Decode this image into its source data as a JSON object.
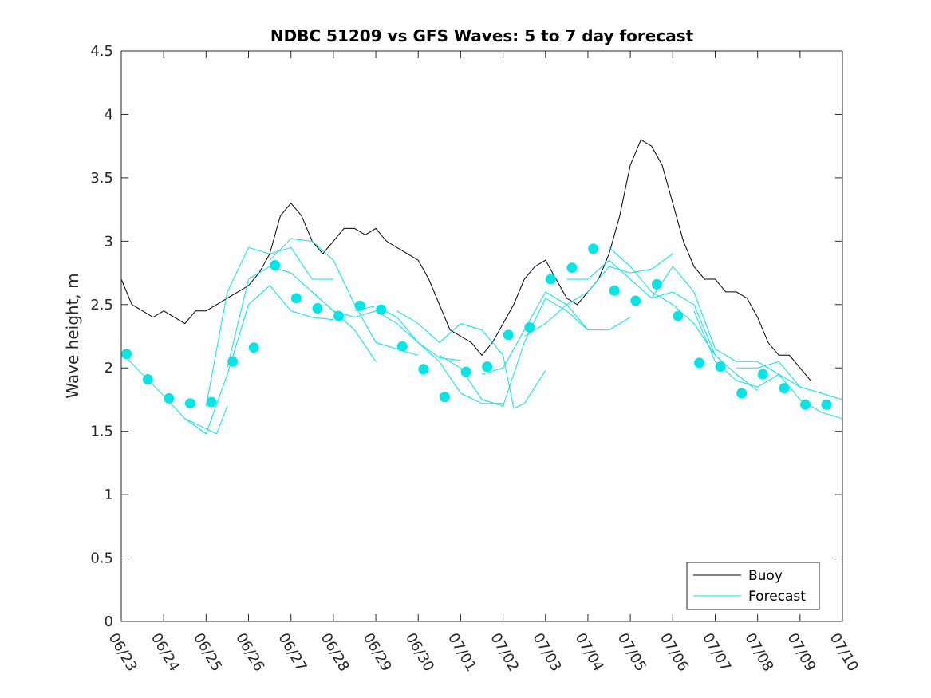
{
  "chart_data": {
    "type": "line",
    "title": "NDBC 51209 vs GFS Waves: 5 to 7 day forecast",
    "xlabel": "",
    "ylabel": "Wave height, m",
    "ylim": [
      0,
      4.5
    ],
    "yticks": [
      "0",
      "0.5",
      "1",
      "1.5",
      "2",
      "2.5",
      "3",
      "3.5",
      "4",
      "4.5"
    ],
    "xlim": [
      "06/23",
      "07/10"
    ],
    "xticks": [
      "06/23",
      "06/24",
      "06/25",
      "06/26",
      "06/27",
      "06/28",
      "06/29",
      "06/30",
      "07/01",
      "07/02",
      "07/03",
      "07/04",
      "07/05",
      "07/06",
      "07/07",
      "07/08",
      "07/09",
      "07/10"
    ],
    "grid": false,
    "legend_position": "bottom-right",
    "colors": {
      "buoy": "#000000",
      "forecast": "#00e6e6",
      "axis": "#262626"
    },
    "series": [
      {
        "name": "Buoy",
        "style": "line",
        "x": [
          "06/23 00:00",
          "06/23 06:00",
          "06/23 12:00",
          "06/23 18:00",
          "06/24 00:00",
          "06/24 06:00",
          "06/24 12:00",
          "06/24 18:00",
          "06/25 00:00",
          "06/25 06:00",
          "06/25 12:00",
          "06/25 18:00",
          "06/26 00:00",
          "06/26 06:00",
          "06/26 12:00",
          "06/26 18:00",
          "06/27 00:00",
          "06/27 06:00",
          "06/27 12:00",
          "06/27 18:00",
          "06/28 00:00",
          "06/28 06:00",
          "06/28 12:00",
          "06/28 18:00",
          "06/29 00:00",
          "06/29 06:00",
          "06/29 12:00",
          "06/29 18:00",
          "06/30 00:00",
          "06/30 06:00",
          "06/30 12:00",
          "06/30 18:00",
          "07/01 00:00",
          "07/01 06:00",
          "07/01 12:00",
          "07/01 18:00",
          "07/02 00:00",
          "07/02 06:00",
          "07/02 12:00",
          "07/02 18:00",
          "07/03 00:00",
          "07/03 06:00",
          "07/03 12:00",
          "07/03 18:00",
          "07/04 00:00",
          "07/04 06:00",
          "07/04 12:00",
          "07/04 18:00",
          "07/05 00:00",
          "07/05 06:00",
          "07/05 12:00",
          "07/05 18:00",
          "07/06 00:00",
          "07/06 06:00",
          "07/06 12:00",
          "07/06 18:00",
          "07/07 00:00",
          "07/07 06:00",
          "07/07 12:00",
          "07/07 18:00",
          "07/08 00:00",
          "07/08 06:00",
          "07/08 12:00",
          "07/08 18:00",
          "07/09 00:00",
          "07/09 06:00"
        ],
        "values": [
          2.7,
          2.5,
          2.45,
          2.4,
          2.45,
          2.4,
          2.35,
          2.45,
          2.45,
          2.5,
          2.55,
          2.6,
          2.65,
          2.75,
          2.9,
          3.2,
          3.3,
          3.2,
          3.0,
          2.9,
          3.0,
          3.1,
          3.1,
          3.05,
          3.1,
          3.0,
          2.95,
          2.9,
          2.85,
          2.7,
          2.5,
          2.3,
          2.25,
          2.2,
          2.1,
          2.2,
          2.35,
          2.5,
          2.7,
          2.8,
          2.85,
          2.7,
          2.55,
          2.5,
          2.6,
          2.7,
          2.9,
          3.2,
          3.6,
          3.8,
          3.75,
          3.6,
          3.3,
          3.0,
          2.8,
          2.7,
          2.7,
          2.6,
          2.6,
          2.55,
          2.4,
          2.2,
          2.1,
          2.1,
          2.0,
          1.9
        ]
      },
      {
        "name": "Forecast",
        "style": "markers",
        "x": [
          "06/23 03:00",
          "06/23 15:00",
          "06/24 03:00",
          "06/24 15:00",
          "06/25 03:00",
          "06/25 15:00",
          "06/26 03:00",
          "06/26 15:00",
          "06/27 03:00",
          "06/27 15:00",
          "06/28 03:00",
          "06/28 15:00",
          "06/29 03:00",
          "06/29 15:00",
          "06/30 03:00",
          "06/30 15:00",
          "07/01 03:00",
          "07/01 15:00",
          "07/02 03:00",
          "07/02 15:00",
          "07/03 03:00",
          "07/03 15:00",
          "07/04 03:00",
          "07/04 15:00",
          "07/05 03:00",
          "07/05 15:00",
          "07/06 03:00",
          "07/06 15:00",
          "07/07 03:00",
          "07/07 15:00",
          "07/08 03:00",
          "07/08 15:00",
          "07/09 03:00",
          "07/09 15:00"
        ],
        "values": [
          2.11,
          1.91,
          1.76,
          1.72,
          1.73,
          2.05,
          2.16,
          2.81,
          2.55,
          2.47,
          2.41,
          2.49,
          2.46,
          2.17,
          1.99,
          1.77,
          1.97,
          2.01,
          2.26,
          2.32,
          2.7,
          2.79,
          2.94,
          2.61,
          2.53,
          2.66,
          2.41,
          2.04,
          2.01,
          1.8,
          1.95,
          1.84,
          1.71,
          1.71
        ]
      },
      {
        "style": "line",
        "x": [
          "06/23 00:00",
          "06/23 12:00",
          "06/24 00:00",
          "06/24 12:00",
          "06/25 00:00",
          "06/25 06:00",
          "06/25 12:00"
        ],
        "values": [
          2.12,
          1.95,
          1.78,
          1.6,
          1.52,
          1.48,
          1.7
        ]
      },
      {
        "style": "line",
        "x": [
          "06/24 12:00",
          "06/25 00:00",
          "06/25 12:00",
          "06/26 00:00",
          "06/26 12:00",
          "06/27 00:00",
          "06/27 12:00",
          "06/28 00:00"
        ],
        "values": [
          1.6,
          1.48,
          1.95,
          2.5,
          2.65,
          2.45,
          2.4,
          2.38
        ]
      },
      {
        "style": "line",
        "x": [
          "06/25 00:00",
          "06/25 12:00",
          "06/26 00:00",
          "06/26 12:00",
          "06/27 00:00",
          "06/27 12:00",
          "06/28 00:00"
        ],
        "values": [
          1.7,
          2.6,
          2.95,
          2.9,
          2.95,
          2.7,
          2.7
        ]
      },
      {
        "style": "line",
        "x": [
          "06/25 12:00",
          "06/26 00:00",
          "06/26 12:00",
          "06/27 00:00",
          "06/27 12:00",
          "06/28 00:00",
          "06/28 12:00",
          "06/29 00:00"
        ],
        "values": [
          2.0,
          2.7,
          2.8,
          2.75,
          2.6,
          2.45,
          2.3,
          2.05
        ]
      },
      {
        "style": "line",
        "x": [
          "06/26 12:00",
          "06/27 00:00",
          "06/27 12:00",
          "06/28 00:00",
          "06/28 12:00",
          "06/29 00:00",
          "06/29 12:00",
          "06/30 00:00"
        ],
        "values": [
          2.85,
          3.02,
          3.0,
          2.85,
          2.5,
          2.2,
          2.15,
          2.1
        ]
      },
      {
        "style": "line",
        "x": [
          "06/27 12:00",
          "06/28 00:00",
          "06/28 12:00",
          "06/29 00:00",
          "06/29 12:00",
          "06/30 00:00",
          "06/30 12:00",
          "07/01 00:00"
        ],
        "values": [
          2.6,
          2.45,
          2.4,
          2.45,
          2.35,
          2.2,
          2.08,
          2.06
        ]
      },
      {
        "style": "line",
        "x": [
          "06/28 12:00",
          "06/29 00:00",
          "06/29 12:00",
          "06/30 00:00",
          "06/30 12:00",
          "07/01 00:00",
          "07/01 12:00",
          "07/02 00:00"
        ],
        "values": [
          2.45,
          2.49,
          2.4,
          2.2,
          2.05,
          1.8,
          1.72,
          1.72
        ]
      },
      {
        "style": "line",
        "x": [
          "06/29 12:00",
          "06/30 00:00",
          "06/30 12:00",
          "07/01 00:00",
          "07/01 12:00",
          "07/02 00:00",
          "07/02 06:00",
          "07/02 12:00",
          "07/03 00:00"
        ],
        "values": [
          2.45,
          2.35,
          2.2,
          2.35,
          2.3,
          2.1,
          1.68,
          1.72,
          1.98
        ]
      },
      {
        "style": "line",
        "x": [
          "06/30 12:00",
          "07/01 00:00",
          "07/01 12:00",
          "07/02 00:00",
          "07/02 12:00",
          "07/03 00:00",
          "07/03 12:00",
          "07/04 00:00"
        ],
        "values": [
          2.1,
          2.0,
          1.75,
          1.7,
          2.2,
          2.55,
          2.45,
          2.3
        ]
      },
      {
        "style": "line",
        "x": [
          "07/01 12:00",
          "07/02 00:00",
          "07/02 12:00",
          "07/03 00:00",
          "07/03 12:00",
          "07/04 00:00",
          "07/04 12:00",
          "07/05 00:00"
        ],
        "values": [
          1.95,
          2.0,
          2.3,
          2.6,
          2.5,
          2.3,
          2.3,
          2.4
        ]
      },
      {
        "style": "line",
        "x": [
          "07/02 12:00",
          "07/03 00:00",
          "07/03 12:00",
          "07/04 00:00",
          "07/04 12:00",
          "07/05 00:00",
          "07/05 12:00",
          "07/06 00:00"
        ],
        "values": [
          2.25,
          2.35,
          2.5,
          2.6,
          2.8,
          2.75,
          2.78,
          2.9
        ]
      },
      {
        "style": "line",
        "x": [
          "07/03 12:00",
          "07/04 00:00",
          "07/04 12:00",
          "07/05 00:00",
          "07/05 12:00",
          "07/06 00:00",
          "07/06 12:00",
          "07/07 00:00"
        ],
        "values": [
          2.7,
          2.7,
          2.85,
          2.7,
          2.55,
          2.6,
          2.5,
          2.1
        ]
      },
      {
        "style": "line",
        "x": [
          "07/04 12:00",
          "07/05 00:00",
          "07/05 12:00",
          "07/06 00:00",
          "07/06 12:00",
          "07/07 00:00",
          "07/07 12:00",
          "07/08 00:00"
        ],
        "values": [
          2.95,
          2.8,
          2.6,
          2.5,
          2.35,
          2.1,
          1.95,
          1.82
        ]
      },
      {
        "style": "line",
        "x": [
          "07/05 12:00",
          "07/06 00:00",
          "07/06 12:00",
          "07/07 00:00",
          "07/07 12:00",
          "07/08 00:00",
          "07/08 12:00",
          "07/09 00:00"
        ],
        "values": [
          2.55,
          2.8,
          2.6,
          2.15,
          2.05,
          2.05,
          1.95,
          1.85
        ]
      },
      {
        "style": "line",
        "x": [
          "07/06 12:00",
          "07/07 00:00",
          "07/07 12:00",
          "07/08 00:00",
          "07/08 12:00",
          "07/09 00:00",
          "07/09 12:00",
          "07/10 00:00"
        ],
        "values": [
          2.45,
          2.05,
          1.9,
          1.85,
          1.95,
          1.75,
          1.65,
          1.6
        ]
      },
      {
        "style": "line",
        "x": [
          "07/07 12:00",
          "07/08 00:00",
          "07/08 12:00",
          "07/09 00:00",
          "07/09 12:00",
          "07/10 00:00"
        ],
        "values": [
          2.0,
          2.0,
          2.05,
          1.85,
          1.8,
          1.75
        ]
      }
    ]
  }
}
